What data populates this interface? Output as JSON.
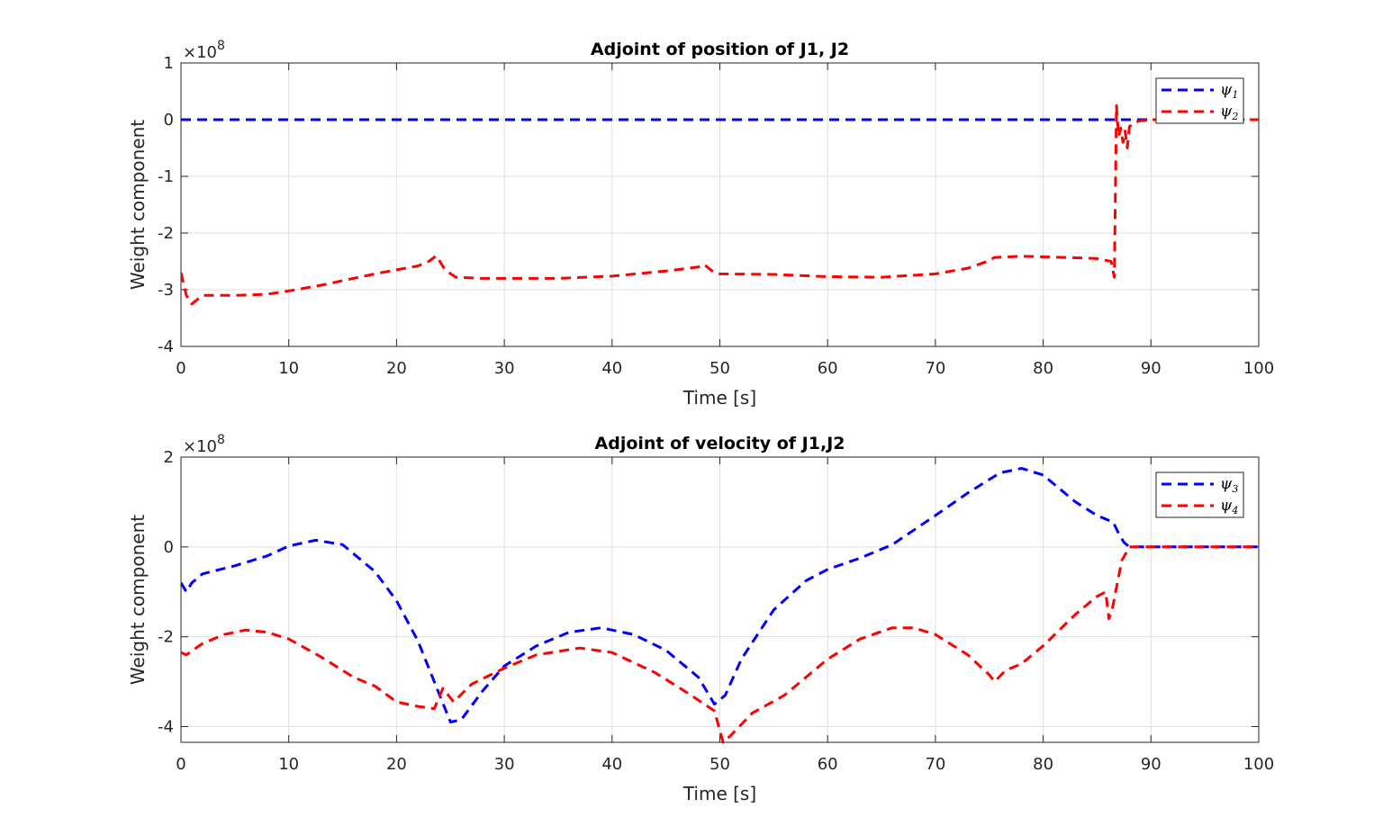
{
  "chart_data": [
    {
      "type": "line",
      "title": "Adjoint of position of J1, J2",
      "xlabel": "Time [s]",
      "ylabel": "Weight component",
      "y_exponent_base": "×10",
      "y_exponent_power": "8",
      "xlim": [
        0,
        100
      ],
      "ylim": [
        -4,
        1
      ],
      "xticks": [
        0,
        10,
        20,
        30,
        40,
        50,
        60,
        70,
        80,
        90,
        100
      ],
      "yticks": [
        1,
        0,
        -1,
        -2,
        -3,
        -4
      ],
      "ytick_labels": [
        "1",
        "0",
        "-1",
        "-2",
        "-3",
        "-4"
      ],
      "grid": true,
      "legend_position": "top-right",
      "series": [
        {
          "name": "ψ1",
          "name_base": "ψ",
          "name_sub": "1",
          "color": "#0000ff",
          "x": [
            0,
            100
          ],
          "y": [
            0,
            0
          ]
        },
        {
          "name": "ψ2",
          "name_base": "ψ",
          "name_sub": "2",
          "color": "#ff0000",
          "x": [
            0,
            0.5,
            1,
            2,
            5,
            8,
            10,
            13,
            16,
            18,
            20,
            22,
            23,
            23.7,
            24.5,
            25.5,
            28,
            35,
            40,
            45,
            48,
            48.5,
            49.5,
            50,
            55,
            60,
            65,
            70,
            73,
            74.8,
            75.5,
            78,
            82,
            85,
            86.3,
            86.6,
            86.8,
            87.0,
            87.2,
            87.4,
            87.6,
            87.8,
            88.0,
            88.3,
            88.6,
            89,
            90,
            95,
            100
          ],
          "y": [
            -2.7,
            -3.1,
            -3.25,
            -3.1,
            -3.1,
            -3.08,
            -3.02,
            -2.92,
            -2.8,
            -2.72,
            -2.65,
            -2.58,
            -2.5,
            -2.4,
            -2.65,
            -2.78,
            -2.8,
            -2.8,
            -2.76,
            -2.67,
            -2.6,
            -2.55,
            -2.7,
            -2.72,
            -2.73,
            -2.77,
            -2.78,
            -2.72,
            -2.62,
            -2.5,
            -2.43,
            -2.41,
            -2.43,
            -2.45,
            -2.5,
            -2.78,
            0.25,
            -0.3,
            -0.15,
            -0.4,
            -0.2,
            -0.5,
            -0.12,
            -0.08,
            -0.04,
            -0.02,
            0,
            0,
            0
          ]
        }
      ]
    },
    {
      "type": "line",
      "title": "Adjoint of velocity of J1,J2",
      "xlabel": "Time [s]",
      "ylabel": "Weight component",
      "y_exponent_base": "×10",
      "y_exponent_power": "8",
      "xlim": [
        0,
        100
      ],
      "ylim": [
        -4.35,
        2
      ],
      "xticks": [
        0,
        10,
        20,
        30,
        40,
        50,
        60,
        70,
        80,
        90,
        100
      ],
      "yticks": [
        2,
        0,
        -2,
        -4
      ],
      "ytick_labels": [
        "2",
        "0",
        "-2",
        "-4"
      ],
      "grid": true,
      "legend_position": "top-right",
      "series": [
        {
          "name": "ψ3",
          "name_base": "ψ",
          "name_sub": "3",
          "color": "#0000ff",
          "x": [
            0,
            0.5,
            1,
            2,
            5,
            8,
            10,
            12.5,
            15,
            18,
            20,
            22,
            24,
            25,
            26,
            28,
            30,
            33,
            36,
            39,
            42,
            45,
            48,
            49.5,
            50.5,
            52,
            55,
            58,
            60,
            63,
            66,
            70,
            73,
            76,
            78,
            80,
            83,
            85,
            86.5,
            87,
            87.5,
            88,
            90,
            95,
            100
          ],
          "y": [
            -0.8,
            -1.0,
            -0.8,
            -0.6,
            -0.42,
            -0.2,
            0.02,
            0.15,
            0.05,
            -0.55,
            -1.2,
            -2.1,
            -3.3,
            -3.9,
            -3.85,
            -3.2,
            -2.65,
            -2.2,
            -1.9,
            -1.8,
            -1.95,
            -2.3,
            -2.9,
            -3.5,
            -3.3,
            -2.5,
            -1.4,
            -0.75,
            -0.5,
            -0.25,
            0.05,
            0.7,
            1.2,
            1.65,
            1.75,
            1.6,
            1.0,
            0.7,
            0.55,
            0.3,
            0.1,
            0,
            0,
            0,
            0
          ]
        },
        {
          "name": "ψ4",
          "name_base": "ψ",
          "name_sub": "4",
          "color": "#ff0000",
          "x": [
            0,
            0.5,
            2,
            4,
            6,
            8,
            10,
            13,
            16,
            18,
            20,
            22,
            23.5,
            24.3,
            25.3,
            27,
            30,
            33,
            37,
            40,
            44,
            47,
            49.5,
            50.3,
            51,
            53,
            56,
            60,
            63,
            66,
            68,
            70,
            73,
            75,
            75.5,
            76.5,
            78,
            80,
            83,
            85,
            85.8,
            86.1,
            86.4,
            86.8,
            87.3,
            88,
            90,
            95,
            100
          ],
          "y": [
            -2.35,
            -2.4,
            -2.15,
            -1.95,
            -1.85,
            -1.9,
            -2.05,
            -2.45,
            -2.9,
            -3.1,
            -3.45,
            -3.55,
            -3.6,
            -3.15,
            -3.45,
            -3.05,
            -2.7,
            -2.4,
            -2.25,
            -2.35,
            -2.8,
            -3.25,
            -3.65,
            -4.35,
            -4.2,
            -3.7,
            -3.3,
            -2.5,
            -2.05,
            -1.8,
            -1.8,
            -1.95,
            -2.4,
            -2.85,
            -3.0,
            -2.75,
            -2.6,
            -2.2,
            -1.5,
            -1.1,
            -1.0,
            -1.6,
            -1.4,
            -0.9,
            -0.3,
            0,
            0,
            0,
            0
          ]
        }
      ]
    }
  ]
}
